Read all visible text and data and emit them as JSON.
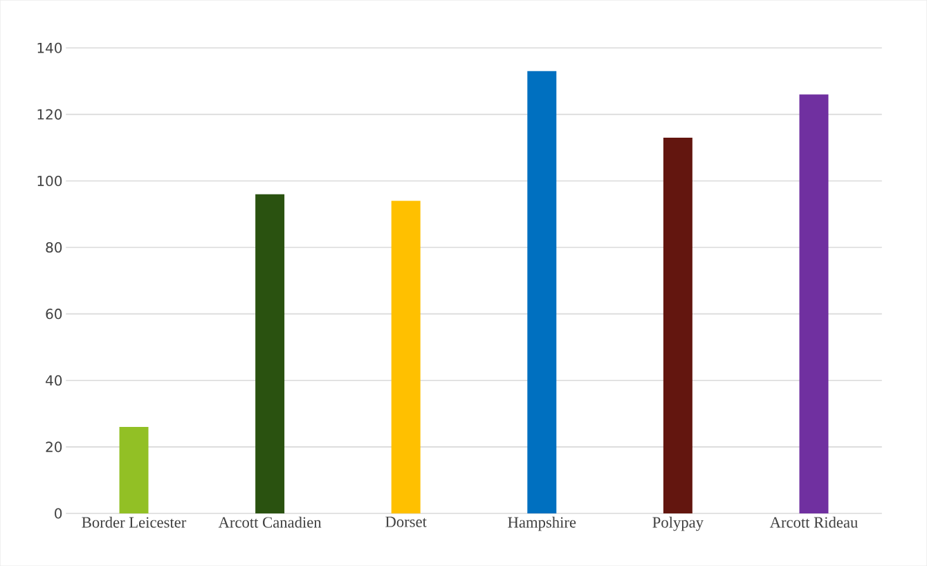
{
  "chart_data": {
    "type": "bar",
    "categories": [
      "Border Leicester",
      "Arcott Canadien",
      "Dorset",
      "Hampshire",
      "Polypay",
      "Arcott Rideau"
    ],
    "values": [
      26,
      96,
      94,
      133,
      113,
      126
    ],
    "colors": [
      "#92c025",
      "#2a5210",
      "#ffc000",
      "#0070c0",
      "#63160f",
      "#7030a0"
    ],
    "ylim": [
      0,
      140
    ],
    "yticks": [
      0,
      20,
      40,
      60,
      80,
      100,
      120,
      140
    ],
    "grid": "y"
  }
}
